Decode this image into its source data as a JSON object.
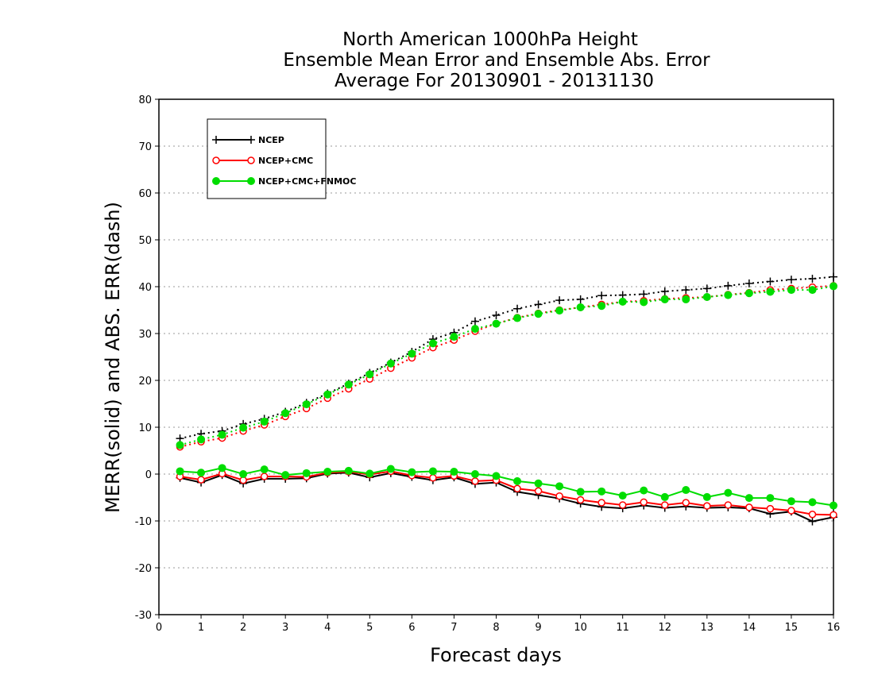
{
  "chart_data": {
    "type": "line",
    "title": [
      "North American 1000hPa Height",
      "Ensemble Mean Error and Ensemble Abs. Error",
      "Average For 20130901 - 20131130"
    ],
    "xlabel": "Forecast days",
    "ylabel": "MERR(solid) and ABS. ERR(dash)",
    "xlim": [
      0,
      16
    ],
    "ylim": [
      -30,
      80
    ],
    "xticks": [
      0,
      1,
      2,
      3,
      4,
      5,
      6,
      7,
      8,
      9,
      10,
      11,
      12,
      13,
      14,
      15,
      16
    ],
    "yticks": [
      -30,
      -20,
      -10,
      0,
      10,
      20,
      30,
      40,
      50,
      60,
      70,
      80
    ],
    "grid": "horizontal dotted",
    "legend_position": "top-left",
    "x": [
      0.5,
      1,
      1.5,
      2,
      2.5,
      3,
      3.5,
      4,
      4.5,
      5,
      5.5,
      6,
      6.5,
      7,
      7.5,
      8,
      8.5,
      9,
      9.5,
      10,
      10.5,
      11,
      11.5,
      12,
      12.5,
      13,
      13.5,
      14,
      14.5,
      15,
      15.5,
      16
    ],
    "series": [
      {
        "name": "NCEP",
        "color": "#000000",
        "marker": "plus",
        "abs_err": [
          7.6,
          8.6,
          9.2,
          10.7,
          11.8,
          13.3,
          15.2,
          17.2,
          19.3,
          21.6,
          23.8,
          26.1,
          28.8,
          30.2,
          32.6,
          33.9,
          35.3,
          36.2,
          37.1,
          37.3,
          38.1,
          38.2,
          38.4,
          39.0,
          39.3,
          39.6,
          40.2,
          40.7,
          41.1,
          41.5,
          41.7,
          42.1
        ],
        "mean_err": [
          -0.8,
          -1.8,
          -0.2,
          -2.0,
          -1.0,
          -1.0,
          -0.9,
          0.1,
          0.3,
          -0.7,
          0.2,
          -0.6,
          -1.3,
          -0.7,
          -2.1,
          -1.8,
          -3.8,
          -4.5,
          -5.2,
          -6.3,
          -7.0,
          -7.3,
          -6.7,
          -7.2,
          -6.9,
          -7.2,
          -7.1,
          -7.3,
          -8.5,
          -8.0,
          -10.1,
          -9.2
        ]
      },
      {
        "name": "NCEP+CMC",
        "color": "#ff0000",
        "marker": "open-circle",
        "abs_err": [
          5.8,
          6.9,
          7.7,
          9.2,
          10.5,
          12.3,
          14.0,
          16.2,
          18.2,
          20.3,
          22.6,
          24.8,
          27.0,
          28.6,
          30.5,
          32.1,
          33.4,
          34.3,
          35.0,
          35.6,
          36.2,
          36.8,
          37.0,
          37.4,
          37.6,
          37.8,
          38.3,
          38.7,
          39.3,
          39.6,
          39.9,
          40.2
        ],
        "mean_err": [
          -0.5,
          -1.2,
          0.1,
          -1.3,
          -0.5,
          -0.5,
          -0.6,
          0.3,
          0.5,
          -0.1,
          0.6,
          -0.3,
          -0.8,
          -0.4,
          -1.5,
          -1.3,
          -3.1,
          -3.6,
          -4.7,
          -5.5,
          -6.1,
          -6.6,
          -6.0,
          -6.6,
          -6.1,
          -6.8,
          -6.6,
          -7.1,
          -7.4,
          -7.8,
          -8.6,
          -8.7
        ]
      },
      {
        "name": "NCEP+CMC+FNMOC",
        "color": "#00dd00",
        "marker": "filled-circle",
        "abs_err": [
          6.2,
          7.4,
          8.4,
          9.9,
          11.2,
          13.0,
          14.9,
          17.0,
          19.1,
          21.3,
          23.6,
          25.7,
          27.9,
          29.3,
          31.0,
          32.1,
          33.3,
          34.2,
          34.9,
          35.6,
          35.9,
          36.8,
          36.7,
          37.3,
          37.3,
          37.8,
          38.2,
          38.6,
          38.9,
          39.3,
          39.3,
          40.1
        ],
        "mean_err": [
          0.6,
          0.3,
          1.3,
          0.0,
          1.0,
          -0.2,
          0.2,
          0.5,
          0.7,
          0.1,
          1.1,
          0.4,
          0.6,
          0.5,
          0.0,
          -0.4,
          -1.5,
          -2.0,
          -2.6,
          -3.8,
          -3.7,
          -4.6,
          -3.5,
          -4.9,
          -3.4,
          -4.9,
          -4.0,
          -5.1,
          -5.1,
          -5.8,
          -6.0,
          -6.7
        ]
      }
    ]
  }
}
